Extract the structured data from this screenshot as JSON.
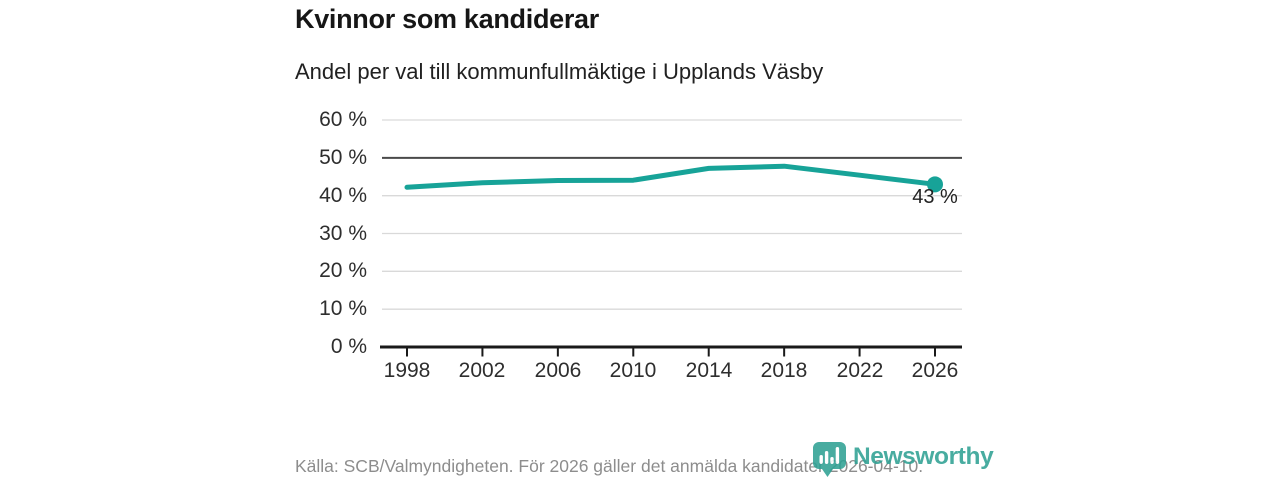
{
  "header": {
    "title": "Kvinnor som kandiderar",
    "subtitle": "Andel per val till kommunfullmäktige i Upplands Väsby"
  },
  "chart_data": {
    "type": "line",
    "title": "Kvinnor som kandiderar",
    "subtitle": "Andel per val till kommunfullmäktige i Upplands Väsby",
    "categories": [
      "1998",
      "2002",
      "2006",
      "2010",
      "2014",
      "2018",
      "2022",
      "2026"
    ],
    "values": [
      42.2,
      43.4,
      44,
      44.1,
      47.2,
      47.8,
      45.4,
      43
    ],
    "unit": "%",
    "ylim": [
      0,
      60
    ],
    "ytick_step": 10,
    "ytick_labels": [
      "60 %",
      "50 %",
      "40 %",
      "30 %",
      "20 %",
      "10 %",
      "0 %"
    ],
    "xtick_labels": [
      "1998",
      "2002",
      "2006",
      "2010",
      "2014",
      "2018",
      "2022",
      "2026"
    ],
    "end_label": "43 %",
    "grid": true,
    "legend": "none",
    "emphasis_gridline": 50,
    "line_color": "#17a398",
    "grid_color": "#d9d9d9",
    "emphasis_color": "#4a4a4a",
    "axis_color": "#1a1a1a"
  },
  "footer": {
    "source": "Källa: SCB/Valmyndigheten. För 2026 gäller det anmälda kandidater 2026-04-10."
  },
  "branding": {
    "name": "Newsworthy",
    "color": "#2fa194",
    "icon": "bar-chart-bubble-icon"
  }
}
